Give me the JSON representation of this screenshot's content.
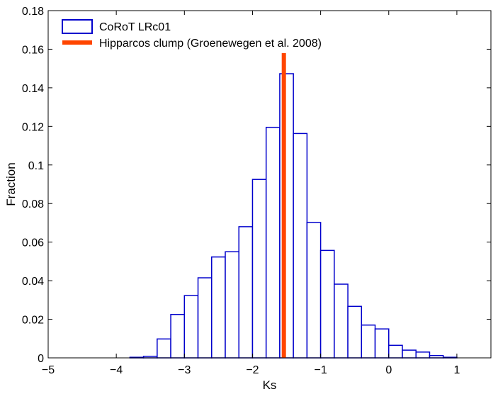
{
  "chart_data": {
    "type": "bar",
    "xlabel": "Ks",
    "ylabel": "Fraction",
    "xlim": [
      -5,
      1.5
    ],
    "ylim": [
      0,
      0.18
    ],
    "xticks": [
      -5,
      -4,
      -3,
      -2,
      -1,
      0,
      1
    ],
    "yticks": [
      0,
      0.02,
      0.04,
      0.06,
      0.08,
      0.1,
      0.12,
      0.14,
      0.16,
      0.18
    ],
    "xtick_labels": [
      "−5",
      "−4",
      "−3",
      "−2",
      "−1",
      "0",
      "1"
    ],
    "ytick_labels": [
      "0",
      "0.02",
      "0.04",
      "0.06",
      "0.08",
      "0.1",
      "0.12",
      "0.14",
      "0.16",
      "0.18"
    ],
    "grid": false,
    "legend_position": "top-left",
    "series": [
      {
        "name": "CoRoT LRc01",
        "style": "histogram-outline",
        "color": "#0000cc",
        "bin_width": 0.2,
        "bins": [
          {
            "x0": -3.8,
            "value": 0.0003
          },
          {
            "x0": -3.6,
            "value": 0.0008
          },
          {
            "x0": -3.4,
            "value": 0.0098
          },
          {
            "x0": -3.2,
            "value": 0.0225
          },
          {
            "x0": -3.0,
            "value": 0.0323
          },
          {
            "x0": -2.8,
            "value": 0.0415
          },
          {
            "x0": -2.6,
            "value": 0.0523
          },
          {
            "x0": -2.4,
            "value": 0.055
          },
          {
            "x0": -2.2,
            "value": 0.068
          },
          {
            "x0": -2.0,
            "value": 0.0925
          },
          {
            "x0": -1.8,
            "value": 0.1195
          },
          {
            "x0": -1.6,
            "value": 0.1473
          },
          {
            "x0": -1.4,
            "value": 0.1163
          },
          {
            "x0": -1.2,
            "value": 0.0702
          },
          {
            "x0": -1.0,
            "value": 0.0557
          },
          {
            "x0": -0.8,
            "value": 0.0382
          },
          {
            "x0": -0.6,
            "value": 0.0267
          },
          {
            "x0": -0.4,
            "value": 0.017
          },
          {
            "x0": -0.2,
            "value": 0.015
          },
          {
            "x0": 0.0,
            "value": 0.0065
          },
          {
            "x0": 0.2,
            "value": 0.004
          },
          {
            "x0": 0.4,
            "value": 0.003
          },
          {
            "x0": 0.6,
            "value": 0.0012
          },
          {
            "x0": 0.8,
            "value": 0.0003
          }
        ]
      },
      {
        "name": "Hipparcos clump (Groenewegen et al. 2008)",
        "style": "vertical-line",
        "color": "#ff4500",
        "x": -1.54,
        "y_range": [
          0,
          0.158
        ]
      }
    ]
  }
}
